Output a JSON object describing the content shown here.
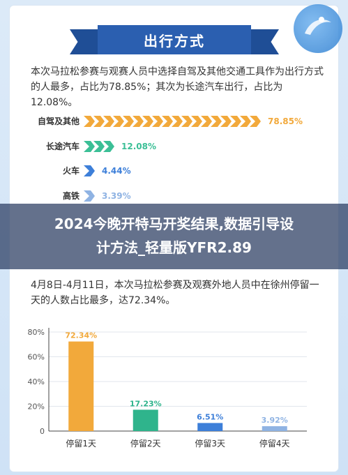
{
  "header": {
    "title": "出行方式"
  },
  "intro_text": "本次马拉松参赛与观赛人员中选择自驾及其他交通工具作为出行方式的人最多，占比为78.85%；其次为长途汽车出行，占比为12.08%。",
  "transport": [
    {
      "label": "自驾及其他",
      "value": 78.85,
      "text": "78.85%",
      "color": "#f2a93b"
    },
    {
      "label": "长途汽车",
      "value": 12.08,
      "text": "12.08%",
      "color": "#3bbf96"
    },
    {
      "label": "火车",
      "value": 4.44,
      "text": "4.44%",
      "color": "#3d7fd9"
    },
    {
      "label": "高铁",
      "value": 3.39,
      "text": "3.39%",
      "color": "#8fb3e3"
    }
  ],
  "overlay_title_line1": "2024今晚开特马开奖结果,数据引导设",
  "overlay_title_line2": "计方法_轻量版YFR2.89",
  "stay_text": "4月8日-4月11日，本次马拉松参赛及观赛外地人员中在徐州停留一天的人数占比最多，达72.34%。",
  "chart_data": {
    "type": "bar",
    "categories": [
      "停留1天",
      "停留2天",
      "停留3天",
      "停留4天"
    ],
    "values": [
      72.34,
      17.23,
      6.51,
      3.92
    ],
    "labels": [
      "72.34%",
      "17.23%",
      "6.51%",
      "3.92%"
    ],
    "colors": [
      "#f2a93b",
      "#2fb48c",
      "#3d7fd9",
      "#8fb3e3"
    ],
    "yticks": [
      "0",
      "20%",
      "40%",
      "60%",
      "80%"
    ],
    "ylim": [
      0,
      80
    ],
    "grid": true
  }
}
